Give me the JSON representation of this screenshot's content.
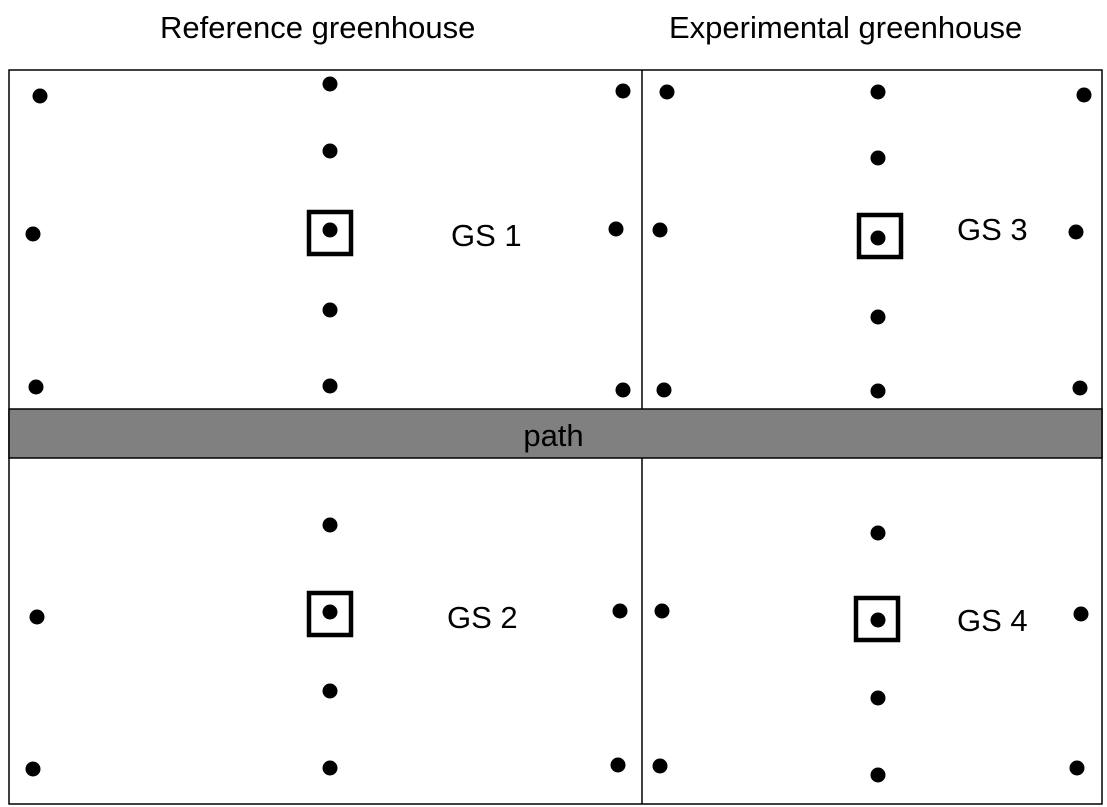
{
  "headers": {
    "reference": "Reference greenhouse",
    "experimental": "Experimental greenhouse"
  },
  "path_label": "path",
  "plots": [
    {
      "label": "GS 1"
    },
    {
      "label": "GS 2"
    },
    {
      "label": "GS 3"
    },
    {
      "label": "GS 4"
    }
  ],
  "colors": {
    "line": "#000000",
    "path_fill": "#808080",
    "background": "#ffffff"
  },
  "legend_symbols": [
    "sensor-dot",
    "square-marked-sensor"
  ]
}
